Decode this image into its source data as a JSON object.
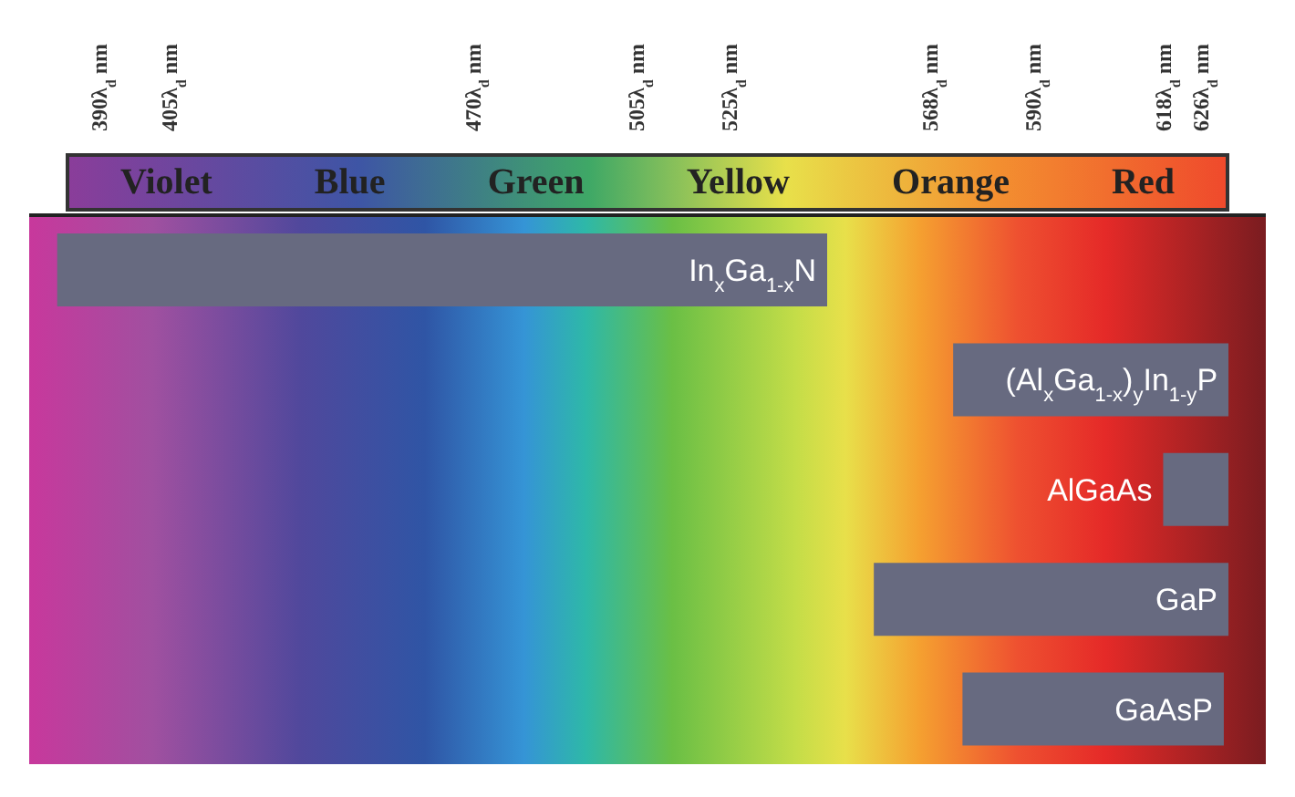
{
  "chart_data": {
    "type": "bar",
    "orientation": "horizontal",
    "categories": [
      "In$_{x}$Ga$_{1-x}$N",
      "(Al$_{x}$Ga$_{1-x}$)$_{y}$In$_{1-y}$P",
      "AlGaAs",
      "GaP",
      "GaAsP"
    ],
    "base": [
      381,
      573,
      618,
      556,
      575
    ],
    "values": [
      165,
      59,
      14,
      76,
      56
    ],
    "color": "#676a80",
    "xlim": [
      375,
      640
    ],
    "xticks": [
      {
        "value": 390,
        "label": "390λ$_{d}$ nm"
      },
      {
        "value": 405,
        "label": "405λ$_{d}$ nm"
      },
      {
        "value": 470,
        "label": "470λ$_{d}$ nm"
      },
      {
        "value": 505,
        "label": "505λ$_{d}$ nm"
      },
      {
        "value": 525,
        "label": "525λ$_{d}$ nm"
      },
      {
        "value": 568,
        "label": "568λ$_{d}$ nm"
      },
      {
        "value": 590,
        "label": "590λ$_{d}$ nm"
      },
      {
        "value": 618,
        "label": "618λ$_{d}$ nm"
      },
      {
        "value": 626,
        "label": "626λ$_{d}$ nm"
      }
    ],
    "annotations": [
      "Violet",
      "Blue",
      "Green",
      "Yellow",
      "Orange",
      "Red"
    ],
    "tick_labels": "x",
    "legend": false,
    "grid": false
  }
}
